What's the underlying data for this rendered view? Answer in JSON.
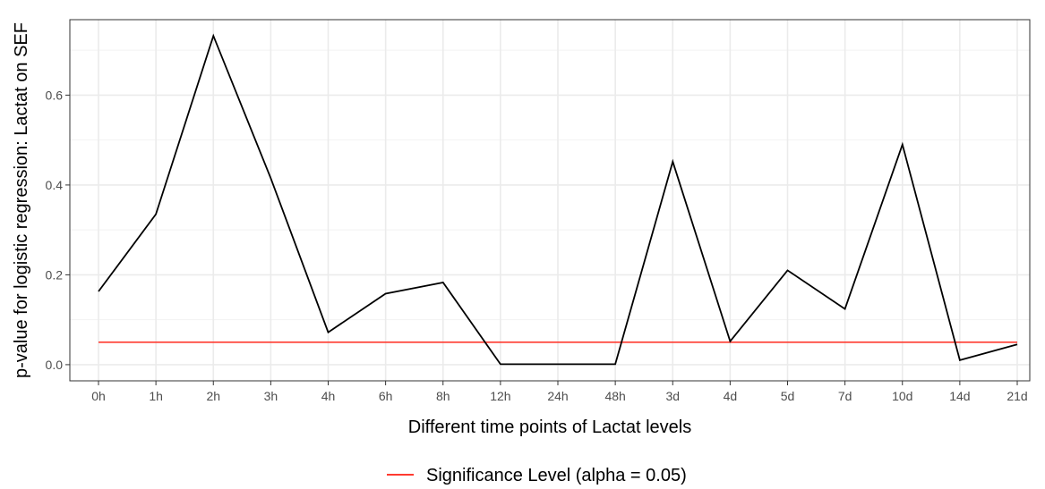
{
  "chart_data": {
    "type": "line",
    "xlabel": "Different time points of Lactat levels",
    "ylabel": "p-value for logistic regression: Lactat on SEF",
    "categories": [
      "0h",
      "1h",
      "2h",
      "3h",
      "4h",
      "6h",
      "8h",
      "12h",
      "24h",
      "48h",
      "3d",
      "4d",
      "5d",
      "7d",
      "10d",
      "14d",
      "21d"
    ],
    "series": [
      {
        "values": [
          0.163,
          0.335,
          0.732,
          0.415,
          0.072,
          0.158,
          0.183,
          0.001,
          0.001,
          0.001,
          0.452,
          0.052,
          0.21,
          0.124,
          0.49,
          0.01,
          0.045
        ],
        "color": "#000000"
      },
      {
        "name": "Significance Level (alpha = 0.05)",
        "values": [
          0.05,
          0.05,
          0.05,
          0.05,
          0.05,
          0.05,
          0.05,
          0.05,
          0.05,
          0.05,
          0.05,
          0.05,
          0.05,
          0.05,
          0.05,
          0.05,
          0.05
        ],
        "color": "#ff3b30"
      }
    ],
    "yticks": [
      "0.0",
      "0.2",
      "0.4",
      "0.6"
    ],
    "ylim": [
      -0.036,
      0.768
    ],
    "grid": true,
    "legend_position": "bottom"
  }
}
